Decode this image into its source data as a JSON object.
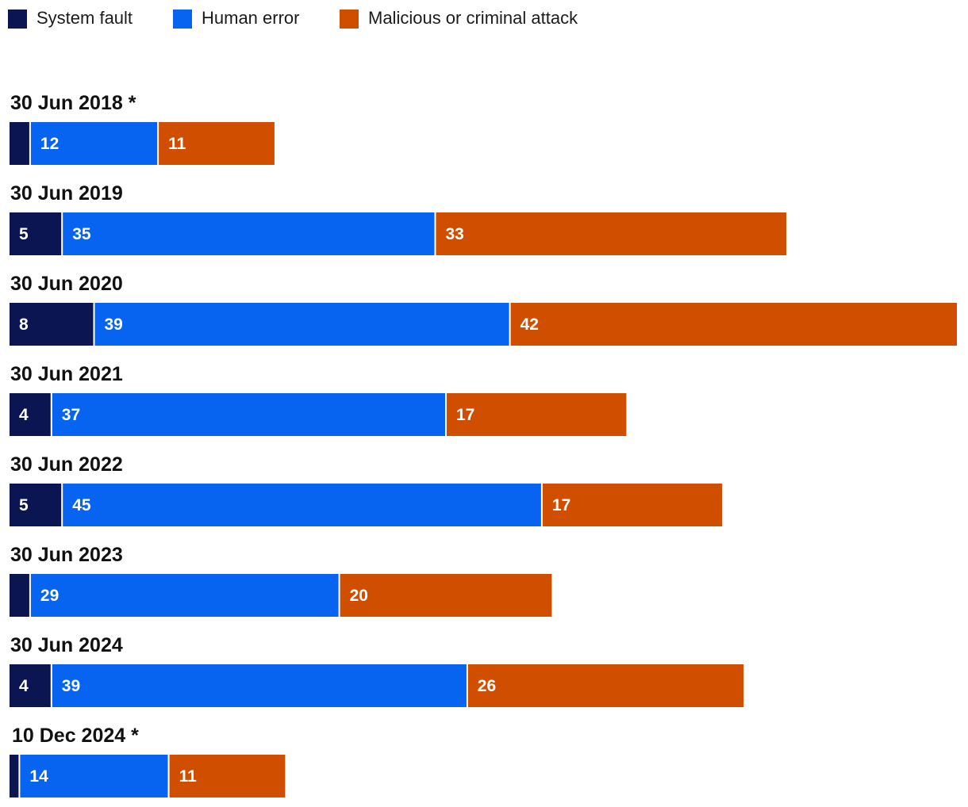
{
  "chart_data": {
    "type": "bar",
    "orientation": "horizontal",
    "stacked": true,
    "legend_position": "top-left",
    "grid": false,
    "series": [
      {
        "name": "System fault",
        "color": "#0a1551",
        "values": [
          2,
          5,
          8,
          4,
          5,
          2,
          4,
          1
        ],
        "labels": [
          "",
          "5",
          "8",
          "4",
          "5",
          "",
          "4",
          ""
        ]
      },
      {
        "name": "Human error",
        "color": "#0764f0",
        "values": [
          12,
          35,
          39,
          37,
          45,
          29,
          39,
          14
        ],
        "labels": [
          "12",
          "35",
          "39",
          "37",
          "45",
          "29",
          "39",
          "14"
        ]
      },
      {
        "name": "Malicious or criminal attack",
        "color": "#d04e00",
        "values": [
          11,
          33,
          42,
          17,
          17,
          20,
          26,
          11
        ],
        "labels": [
          "11",
          "33",
          "42",
          "17",
          "17",
          "20",
          "26",
          "11"
        ]
      }
    ],
    "categories": [
      "30 Jun 2018 *",
      "30 Jun 2019",
      "30 Jun 2020",
      "30 Jun 2021",
      "30 Jun 2022",
      "30 Jun 2023",
      "30 Jun 2024",
      "10 Dec 2024 *"
    ],
    "xlim": [
      0,
      89
    ]
  }
}
